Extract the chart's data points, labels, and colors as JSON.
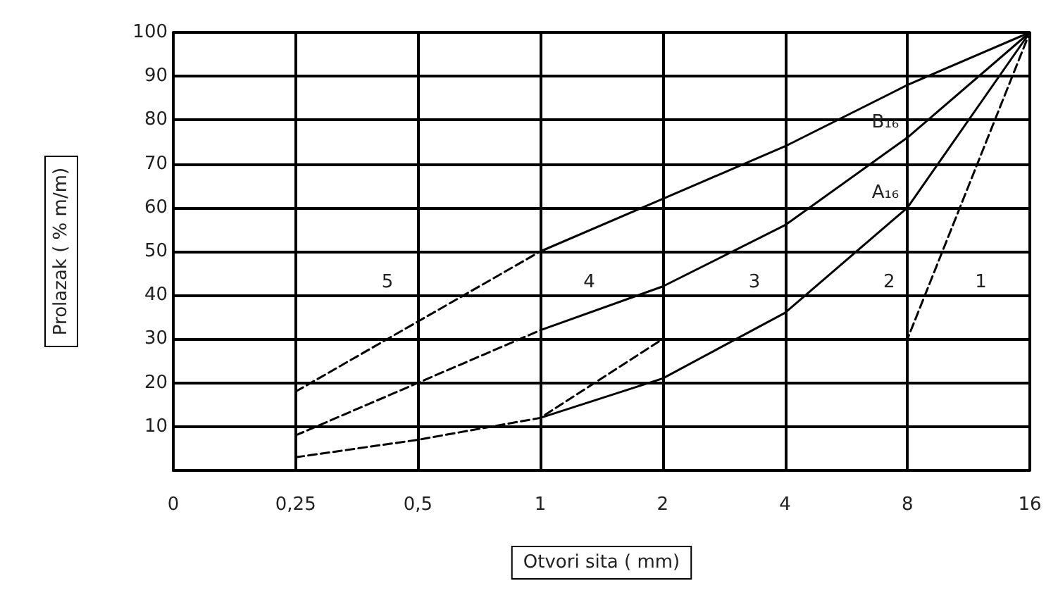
{
  "chart_data": {
    "type": "line",
    "xlabel": "Otvori sita ( mm)",
    "ylabel": "Prolazak ( % m/m)",
    "categories": [
      "0",
      "0,25",
      "0,5",
      "1",
      "2",
      "4",
      "8",
      "16"
    ],
    "series": [
      {
        "color": "#000000",
        "line_style": "dashed",
        "values": [
          null,
          18,
          34,
          50,
          null,
          null,
          null,
          null
        ]
      },
      {
        "color": "#000000",
        "line_style": "solid",
        "values": [
          null,
          null,
          null,
          50,
          62,
          74,
          88,
          100
        ]
      },
      {
        "color": "#000000",
        "line_style": "dashed",
        "values": [
          null,
          8,
          20,
          32,
          null,
          null,
          null,
          null
        ]
      },
      {
        "color": "#000000",
        "line_style": "solid",
        "values": [
          null,
          null,
          null,
          32,
          42,
          56,
          76,
          100
        ]
      },
      {
        "color": "#000000",
        "line_style": "dashed",
        "values": [
          null,
          3,
          7,
          12,
          30,
          30,
          30,
          100
        ]
      },
      {
        "color": "#000000",
        "line_style": "solid",
        "values": [
          null,
          null,
          null,
          12,
          21,
          36,
          60,
          100
        ]
      }
    ],
    "ylim": [
      0,
      100
    ],
    "yticks": [
      10,
      20,
      30,
      40,
      50,
      60,
      70,
      80,
      90,
      100
    ],
    "grid": true,
    "marker": "none",
    "annotations": [
      "5",
      "4",
      "3",
      "2",
      "1",
      {
        "text": "B₁₆",
        "x": "8",
        "y": 76
      },
      {
        "text": "A₁₆",
        "x": "8",
        "y": 60
      }
    ]
  }
}
